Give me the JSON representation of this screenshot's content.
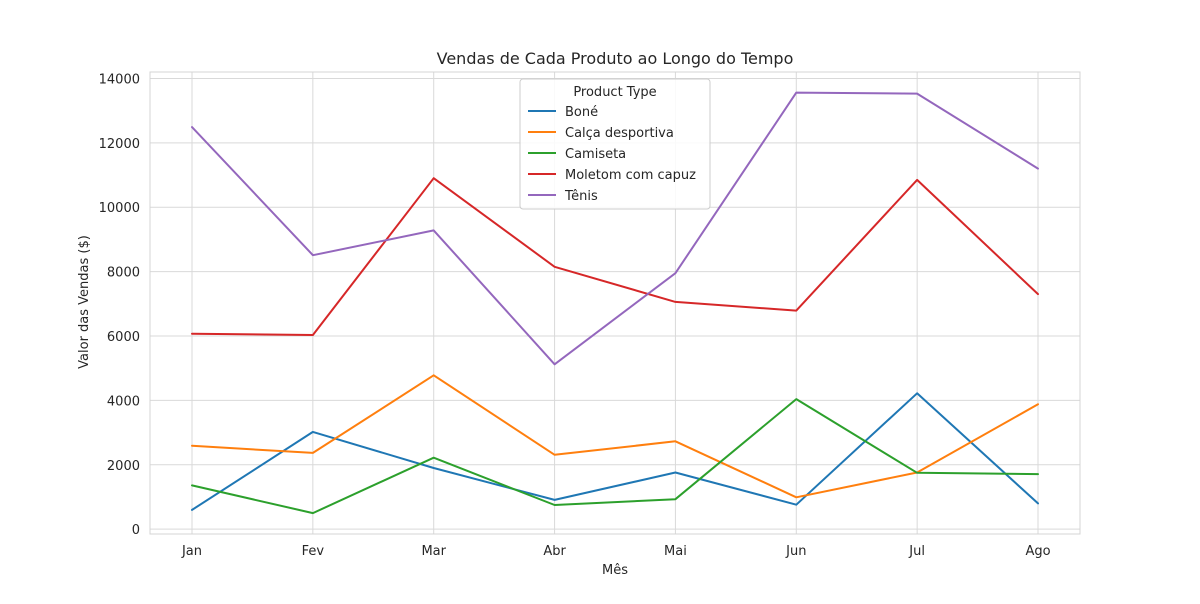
{
  "chart_data": {
    "type": "line",
    "title": "Vendas de Cada Produto ao Longo do Tempo",
    "xlabel": "Mês",
    "ylabel": "Valor das Vendas ($)",
    "categories": [
      "Jan",
      "Fev",
      "Mar",
      "Abr",
      "Mai",
      "Jun",
      "Jul",
      "Ago"
    ],
    "ylim": [
      -150,
      14200
    ],
    "yticks": [
      0,
      2000,
      4000,
      6000,
      8000,
      10000,
      12000,
      14000
    ],
    "grid": true,
    "legend": {
      "title": "Product Type",
      "placement": "upper-center"
    },
    "series": [
      {
        "name": "Boné",
        "color": "#1f77b4",
        "values": [
          600,
          3020,
          1900,
          910,
          1760,
          760,
          4220,
          800
        ]
      },
      {
        "name": "Calça desportiva",
        "color": "#ff7f0e",
        "values": [
          2590,
          2370,
          4780,
          2310,
          2730,
          990,
          1760,
          3880
        ]
      },
      {
        "name": "Camiseta",
        "color": "#2ca02c",
        "values": [
          1360,
          500,
          2220,
          750,
          930,
          4040,
          1750,
          1710
        ]
      },
      {
        "name": "Moletom com capuz",
        "color": "#d62728",
        "values": [
          6070,
          6030,
          10900,
          8150,
          7060,
          6790,
          10850,
          7300
        ]
      },
      {
        "name": "Tênis",
        "color": "#9467bd",
        "values": [
          12490,
          8510,
          9280,
          5120,
          7950,
          13560,
          13530,
          11200
        ]
      }
    ]
  }
}
